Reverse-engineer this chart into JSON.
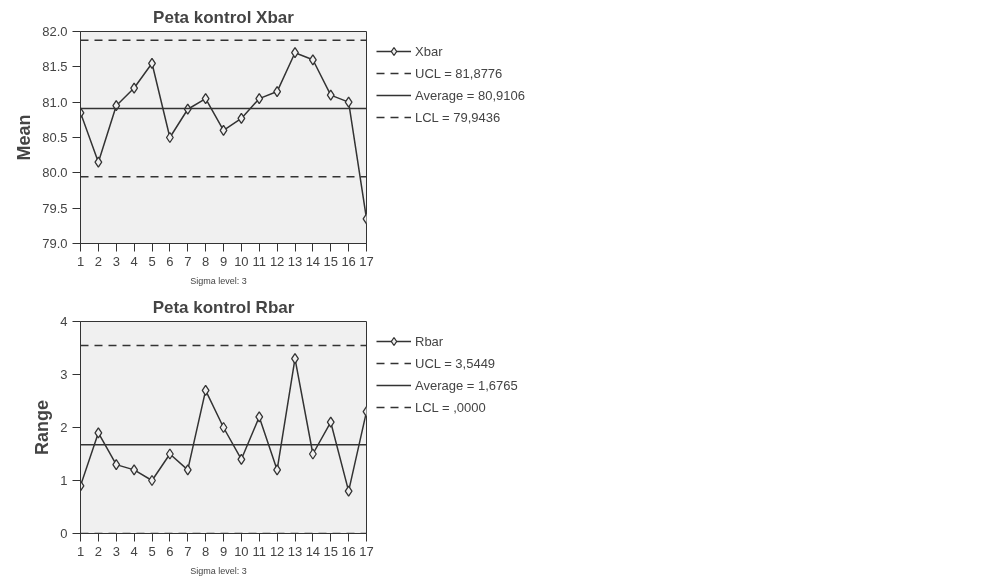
{
  "chart_data": [
    {
      "type": "line",
      "title": "Peta kontrol Xbar",
      "ylabel": "Mean",
      "annotations": [
        "Sigma level:     3"
      ],
      "x": [
        1,
        2,
        3,
        4,
        5,
        6,
        7,
        8,
        9,
        10,
        11,
        12,
        13,
        14,
        15,
        16,
        17
      ],
      "series": [
        {
          "name": "Xbar",
          "color": "#333333",
          "values": [
            80.85,
            80.15,
            80.95,
            81.2,
            81.55,
            80.5,
            80.9,
            81.05,
            80.6,
            80.77,
            81.05,
            81.15,
            81.7,
            81.6,
            81.1,
            81.0,
            79.35
          ]
        }
      ],
      "ref_lines": [
        {
          "axis": "y",
          "value": 81.8776,
          "label": "UCL = 81,8776",
          "color": "#333333",
          "line_style": "dashed"
        },
        {
          "axis": "y",
          "value": 80.9106,
          "label": "Average = 80,9106",
          "color": "#333333",
          "line_style": "solid"
        },
        {
          "axis": "y",
          "value": 79.9436,
          "label": "LCL = 79,9436",
          "color": "#333333",
          "line_style": "dashed"
        }
      ],
      "xlim": [
        1,
        17
      ],
      "xticks": [
        1,
        2,
        3,
        4,
        5,
        6,
        7,
        8,
        9,
        10,
        11,
        12,
        13,
        14,
        15,
        16,
        17
      ],
      "ylim": [
        79,
        82
      ],
      "yticks": [
        {
          "value": 79,
          "label": "79.0"
        },
        {
          "value": 79.5,
          "label": "79.5"
        },
        {
          "value": 80,
          "label": "80.0"
        },
        {
          "value": 80.5,
          "label": "80.5"
        },
        {
          "value": 81,
          "label": "81.0"
        },
        {
          "value": 81.5,
          "label": "81.5"
        },
        {
          "value": 82,
          "label": "82.0"
        }
      ],
      "grid": false,
      "legend": "right",
      "marker": "diamond",
      "line_style": "solid"
    },
    {
      "type": "line",
      "title": "Peta kontrol Rbar",
      "ylabel": "Range",
      "annotations": [
        "Sigma level:     3"
      ],
      "x": [
        1,
        2,
        3,
        4,
        5,
        6,
        7,
        8,
        9,
        10,
        11,
        12,
        13,
        14,
        15,
        16,
        17
      ],
      "series": [
        {
          "name": "Rbar",
          "color": "#333333",
          "values": [
            0.9,
            1.9,
            1.3,
            1.2,
            1.0,
            1.5,
            1.2,
            2.7,
            2.0,
            1.4,
            2.2,
            1.2,
            3.3,
            1.5,
            2.1,
            0.8,
            2.3
          ]
        }
      ],
      "ref_lines": [
        {
          "axis": "y",
          "value": 3.5449,
          "label": "UCL = 3,5449",
          "color": "#333333",
          "line_style": "dashed"
        },
        {
          "axis": "y",
          "value": 1.6765,
          "label": "Average = 1,6765",
          "color": "#333333",
          "line_style": "solid"
        },
        {
          "axis": "y",
          "value": 0,
          "label": "LCL = ,0000",
          "color": "#333333",
          "line_style": "dashed"
        }
      ],
      "xlim": [
        1,
        17
      ],
      "xticks": [
        1,
        2,
        3,
        4,
        5,
        6,
        7,
        8,
        9,
        10,
        11,
        12,
        13,
        14,
        15,
        16,
        17
      ],
      "ylim": [
        0,
        4
      ],
      "yticks": [
        0,
        1,
        2,
        3,
        4
      ],
      "grid": false,
      "legend": "right",
      "marker": "diamond",
      "line_style": "solid"
    }
  ]
}
